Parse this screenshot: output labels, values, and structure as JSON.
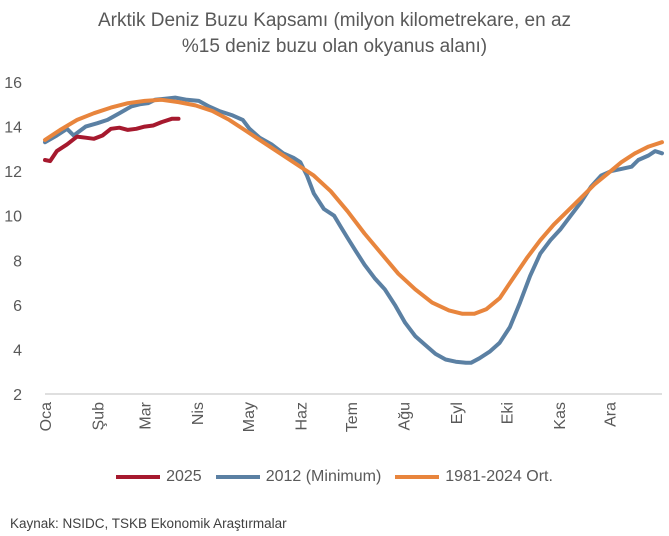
{
  "title_line1": "Arktik Deniz Buzu Kapsamı (milyon kilometrekare, en az",
  "title_line2": "%15 deniz buzu olan okyanus alanı)",
  "source": "Kaynak: NSIDC, TSKB Ekonomik Araştırmalar",
  "chart_data": {
    "type": "line",
    "title": "Arktik Deniz Buzu Kapsamı (milyon kilometrekare, en az %15 deniz buzu olan okyanus alanı)",
    "xlabel": "",
    "ylabel": "",
    "x_unit": "day of year",
    "xlim": [
      1,
      366
    ],
    "ylim": [
      2,
      16
    ],
    "y_ticks": [
      "2",
      "4",
      "6",
      "8",
      "10",
      "12",
      "14",
      "16"
    ],
    "x_ticks": [
      {
        "label": "Oca",
        "day": 1
      },
      {
        "label": "Şub",
        "day": 32
      },
      {
        "label": "Mar",
        "day": 60
      },
      {
        "label": "Nis",
        "day": 91
      },
      {
        "label": "May",
        "day": 121
      },
      {
        "label": "Haz",
        "day": 152
      },
      {
        "label": "Tem",
        "day": 182
      },
      {
        "label": "Ağu",
        "day": 213
      },
      {
        "label": "Eyl",
        "day": 244
      },
      {
        "label": "Eki",
        "day": 274
      },
      {
        "label": "Kas",
        "day": 305
      },
      {
        "label": "Ara",
        "day": 335
      }
    ],
    "grid": false,
    "legend_position": "bottom",
    "series": [
      {
        "name": "2025",
        "color": "#A6192E",
        "points": [
          [
            1,
            12.5
          ],
          [
            4,
            12.45
          ],
          [
            8,
            12.9
          ],
          [
            14,
            13.2
          ],
          [
            20,
            13.55
          ],
          [
            25,
            13.5
          ],
          [
            30,
            13.45
          ],
          [
            35,
            13.6
          ],
          [
            40,
            13.9
          ],
          [
            45,
            13.95
          ],
          [
            50,
            13.85
          ],
          [
            55,
            13.9
          ],
          [
            60,
            14.0
          ],
          [
            65,
            14.05
          ],
          [
            70,
            14.2
          ],
          [
            76,
            14.35
          ],
          [
            80,
            14.35
          ]
        ]
      },
      {
        "name": "2012 (Minimum)",
        "color": "#5B80A3",
        "points": [
          [
            1,
            13.3
          ],
          [
            8,
            13.6
          ],
          [
            14,
            13.9
          ],
          [
            18,
            13.6
          ],
          [
            25,
            14.0
          ],
          [
            32,
            14.15
          ],
          [
            38,
            14.3
          ],
          [
            45,
            14.6
          ],
          [
            52,
            14.9
          ],
          [
            57,
            15.0
          ],
          [
            62,
            15.05
          ],
          [
            66,
            15.2
          ],
          [
            72,
            15.25
          ],
          [
            78,
            15.3
          ],
          [
            85,
            15.2
          ],
          [
            92,
            15.15
          ],
          [
            98,
            14.9
          ],
          [
            104,
            14.7
          ],
          [
            112,
            14.5
          ],
          [
            118,
            14.3
          ],
          [
            122,
            13.9
          ],
          [
            128,
            13.5
          ],
          [
            135,
            13.2
          ],
          [
            142,
            12.8
          ],
          [
            148,
            12.6
          ],
          [
            152,
            12.4
          ],
          [
            156,
            11.8
          ],
          [
            160,
            11.0
          ],
          [
            166,
            10.3
          ],
          [
            172,
            10.0
          ],
          [
            176,
            9.5
          ],
          [
            180,
            9.0
          ],
          [
            185,
            8.4
          ],
          [
            190,
            7.8
          ],
          [
            196,
            7.2
          ],
          [
            202,
            6.7
          ],
          [
            208,
            6.0
          ],
          [
            214,
            5.2
          ],
          [
            220,
            4.6
          ],
          [
            226,
            4.2
          ],
          [
            232,
            3.8
          ],
          [
            238,
            3.55
          ],
          [
            244,
            3.45
          ],
          [
            250,
            3.4
          ],
          [
            253,
            3.4
          ],
          [
            258,
            3.6
          ],
          [
            264,
            3.9
          ],
          [
            270,
            4.3
          ],
          [
            276,
            5.0
          ],
          [
            282,
            6.1
          ],
          [
            288,
            7.3
          ],
          [
            294,
            8.3
          ],
          [
            300,
            8.9
          ],
          [
            306,
            9.4
          ],
          [
            312,
            10.0
          ],
          [
            318,
            10.6
          ],
          [
            324,
            11.3
          ],
          [
            330,
            11.8
          ],
          [
            336,
            12.0
          ],
          [
            342,
            12.1
          ],
          [
            348,
            12.2
          ],
          [
            352,
            12.5
          ],
          [
            358,
            12.7
          ],
          [
            362,
            12.9
          ],
          [
            366,
            12.8
          ]
        ]
      },
      {
        "name": "1981-2024 Ort.",
        "color": "#E8853D",
        "points": [
          [
            1,
            13.4
          ],
          [
            10,
            13.85
          ],
          [
            20,
            14.3
          ],
          [
            30,
            14.6
          ],
          [
            40,
            14.85
          ],
          [
            50,
            15.05
          ],
          [
            60,
            15.15
          ],
          [
            70,
            15.2
          ],
          [
            80,
            15.1
          ],
          [
            90,
            14.95
          ],
          [
            100,
            14.7
          ],
          [
            110,
            14.3
          ],
          [
            120,
            13.8
          ],
          [
            130,
            13.3
          ],
          [
            140,
            12.8
          ],
          [
            150,
            12.3
          ],
          [
            160,
            11.8
          ],
          [
            170,
            11.1
          ],
          [
            180,
            10.2
          ],
          [
            190,
            9.2
          ],
          [
            200,
            8.3
          ],
          [
            210,
            7.4
          ],
          [
            220,
            6.7
          ],
          [
            230,
            6.1
          ],
          [
            240,
            5.75
          ],
          [
            248,
            5.6
          ],
          [
            255,
            5.6
          ],
          [
            262,
            5.8
          ],
          [
            270,
            6.3
          ],
          [
            278,
            7.2
          ],
          [
            286,
            8.1
          ],
          [
            294,
            8.9
          ],
          [
            302,
            9.6
          ],
          [
            310,
            10.2
          ],
          [
            318,
            10.8
          ],
          [
            326,
            11.4
          ],
          [
            334,
            11.9
          ],
          [
            342,
            12.4
          ],
          [
            350,
            12.8
          ],
          [
            358,
            13.1
          ],
          [
            366,
            13.3
          ]
        ]
      }
    ]
  }
}
